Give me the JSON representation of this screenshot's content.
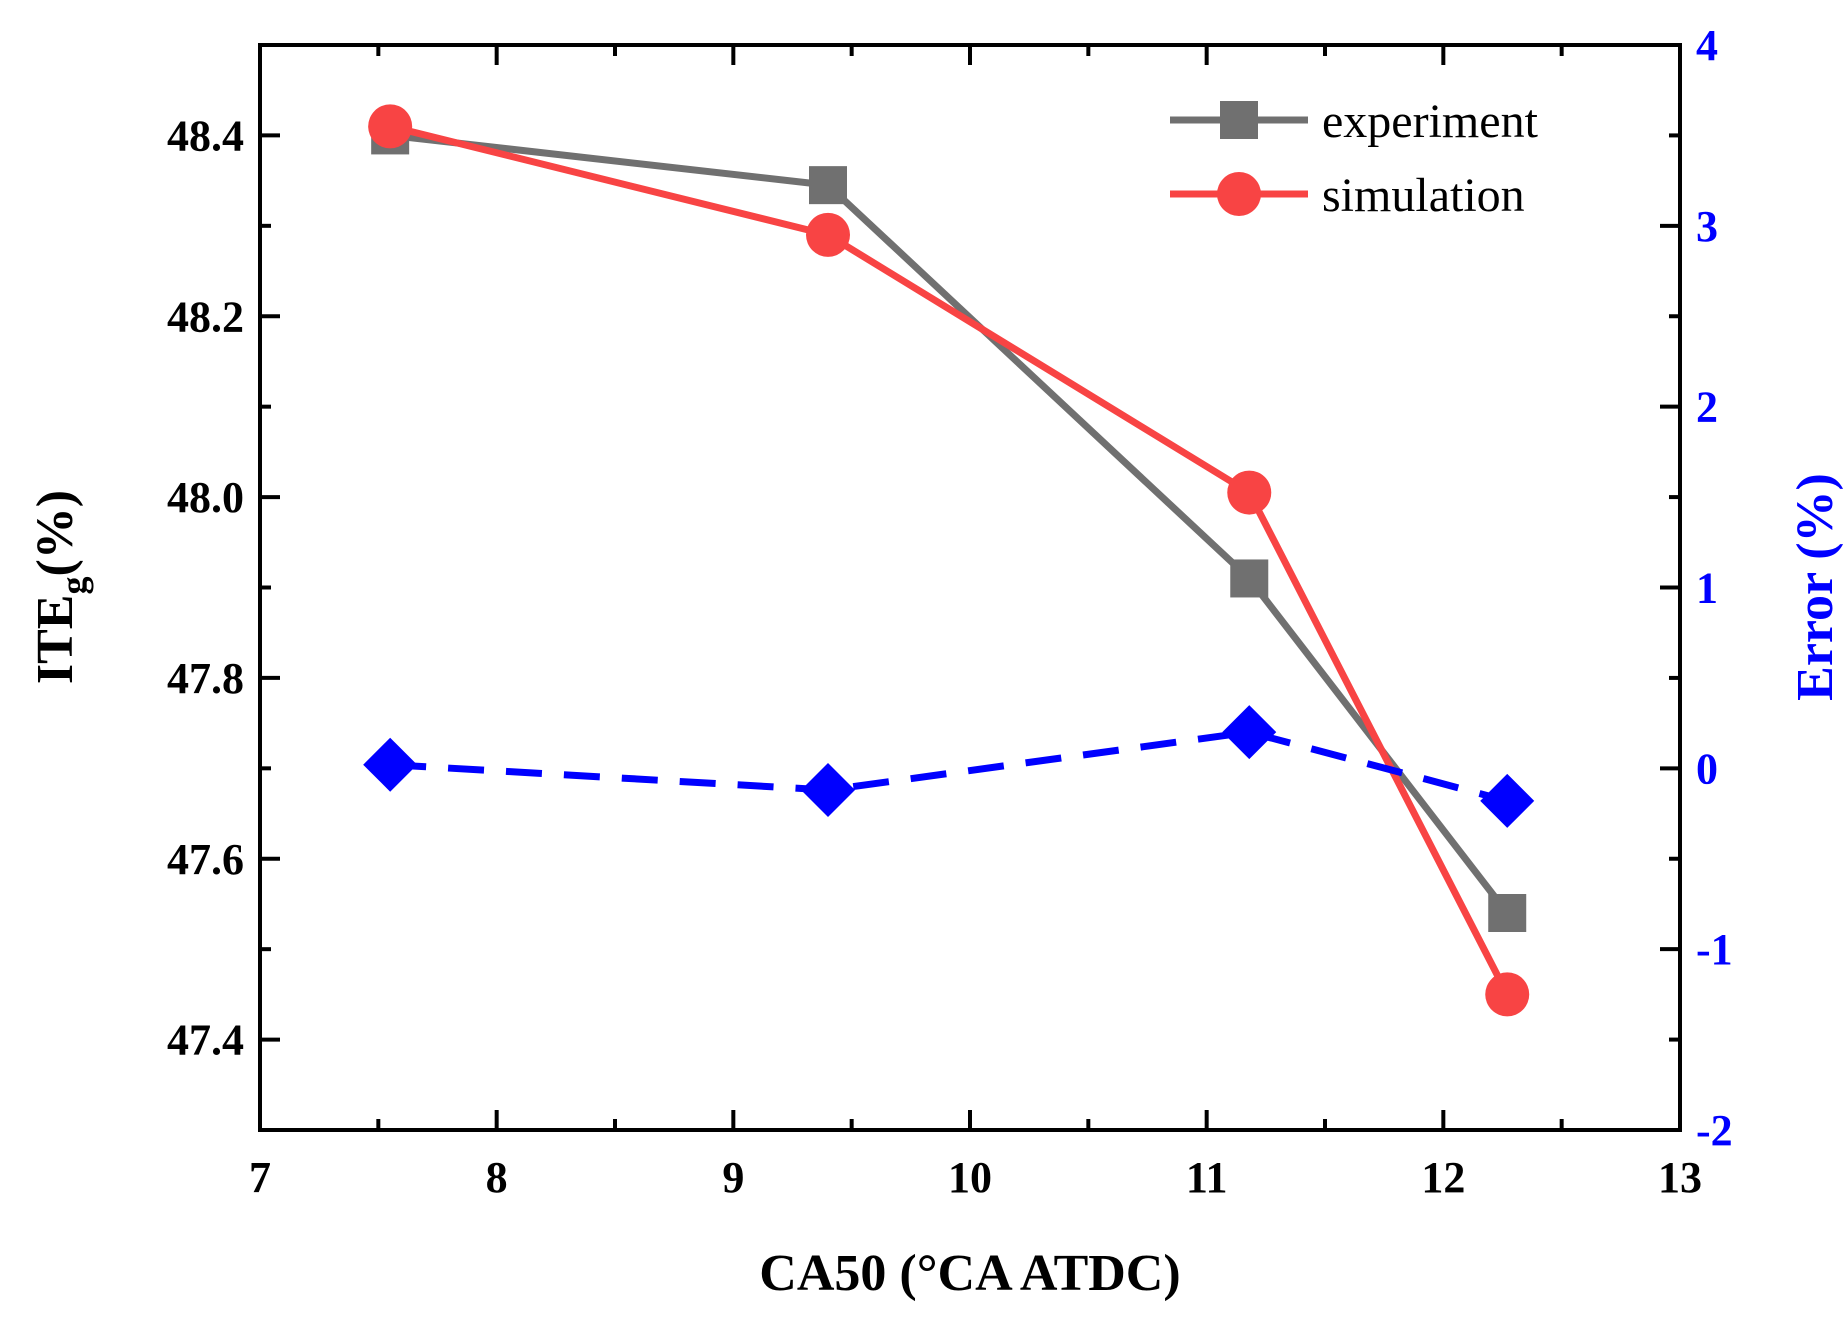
{
  "chart_data": {
    "type": "line",
    "xlabel": "CA50 (°CA ATDC)",
    "ylabel_main": "ITE",
    "ylabel_sub": "g",
    "ylabel_suffix": "(%)",
    "y2label": "Error (%)",
    "xlim": [
      7,
      13
    ],
    "ylim": [
      47.3,
      48.5
    ],
    "y2lim": [
      -2,
      4
    ],
    "xticks": [
      7,
      8,
      9,
      10,
      11,
      12,
      13
    ],
    "xtick_labels": [
      "7",
      "8",
      "9",
      "10",
      "11",
      "12",
      "13"
    ],
    "yticks": [
      47.4,
      47.6,
      47.8,
      48.0,
      48.2,
      48.4
    ],
    "ytick_labels": [
      "47.4",
      "47.6",
      "47.8",
      "48.0",
      "48.2",
      "48.4"
    ],
    "y2ticks": [
      -2,
      -1,
      0,
      1,
      2,
      3,
      4
    ],
    "y2tick_labels": [
      "-2",
      "-1",
      "0",
      "1",
      "2",
      "3",
      "4"
    ],
    "series": [
      {
        "name": "experiment",
        "axis": "left",
        "marker": "square",
        "color": "#707070",
        "x": [
          7.55,
          9.4,
          11.18,
          12.27
        ],
        "y": [
          48.4,
          48.345,
          47.91,
          47.54
        ]
      },
      {
        "name": "simulation",
        "axis": "left",
        "marker": "circle",
        "color": "#f84444",
        "x": [
          7.55,
          9.4,
          11.18,
          12.27
        ],
        "y": [
          48.41,
          48.29,
          48.005,
          47.45
        ]
      },
      {
        "name": "error",
        "axis": "right",
        "marker": "diamond",
        "color": "#0000ff",
        "dashed": true,
        "x": [
          7.55,
          9.4,
          11.18,
          12.27
        ],
        "y": [
          0.02,
          -0.12,
          0.2,
          -0.18
        ]
      }
    ],
    "legend": [
      "experiment",
      "simulation"
    ],
    "legend_position": "top-right",
    "grid": false
  }
}
